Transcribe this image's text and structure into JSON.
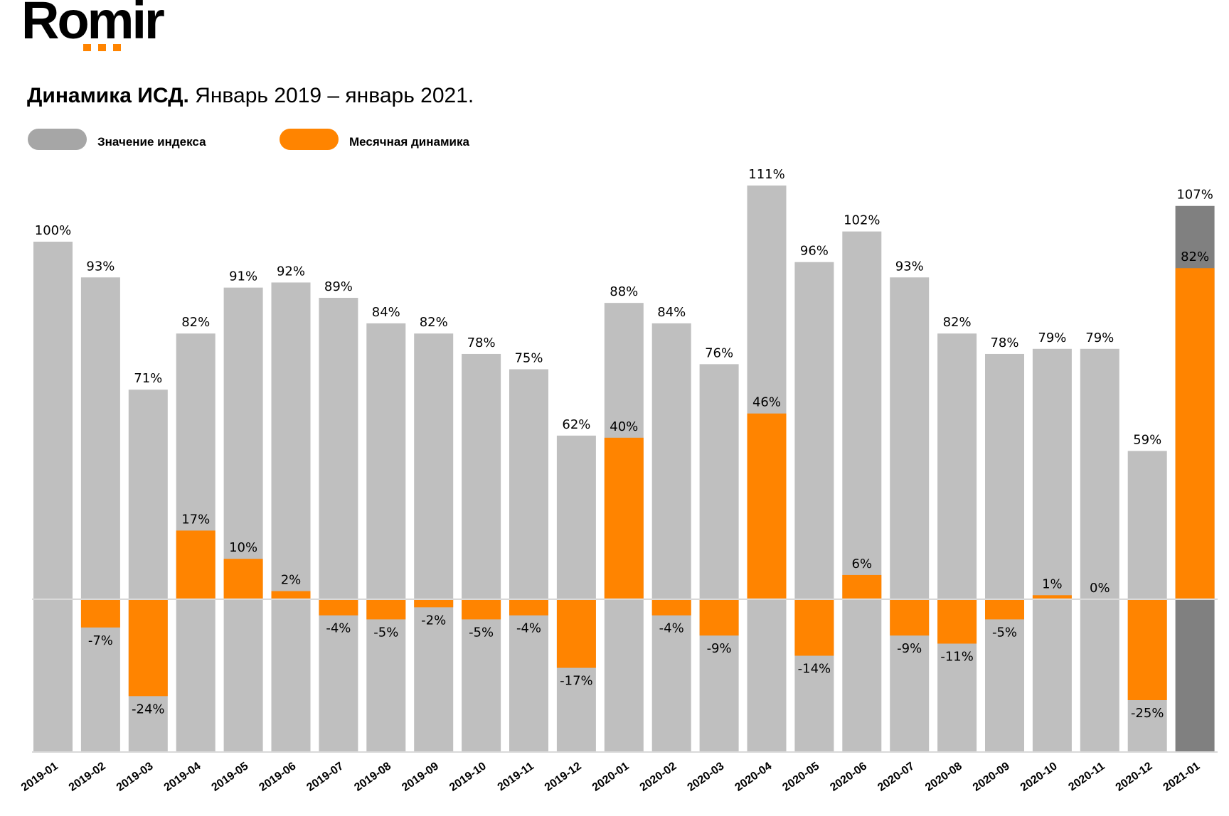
{
  "logo": {
    "text": "Romir"
  },
  "title": {
    "bold": "Динамика ИСД.",
    "regular": "Январь 2019 – январь 2021."
  },
  "chart_data": {
    "type": "bar",
    "title": "Динамика ИСД. Январь 2019 – январь 2021.",
    "xlabel": "",
    "ylabel": "",
    "legend_position": "top-left",
    "colors": {
      "index": "#bfbfbf",
      "index_last": "#808080",
      "change": "#ff8400",
      "legend_index": "#a6a6a6"
    },
    "categories": [
      "2019-01",
      "2019-02",
      "2019-03",
      "2019-04",
      "2019-05",
      "2019-06",
      "2019-07",
      "2019-08",
      "2019-09",
      "2019-10",
      "2019-11",
      "2019-12",
      "2020-01",
      "2020-02",
      "2020-03",
      "2020-04",
      "2020-05",
      "2020-06",
      "2020-07",
      "2020-08",
      "2020-09",
      "2020-10",
      "2020-11",
      "2020-12",
      "2021-01"
    ],
    "series": [
      {
        "name": "Значение индекса",
        "unit": "%",
        "values": [
          100,
          93,
          71,
          82,
          91,
          92,
          89,
          84,
          82,
          78,
          75,
          62,
          88,
          84,
          76,
          111,
          96,
          102,
          93,
          82,
          78,
          79,
          79,
          59,
          107
        ]
      },
      {
        "name": "Месячная динамика",
        "unit": "%",
        "values": [
          null,
          -7,
          -24,
          17,
          10,
          2,
          -4,
          -5,
          -2,
          -5,
          -4,
          -17,
          40,
          -4,
          -9,
          46,
          -14,
          6,
          -9,
          -11,
          -5,
          1,
          0,
          -25,
          82
        ]
      }
    ]
  }
}
